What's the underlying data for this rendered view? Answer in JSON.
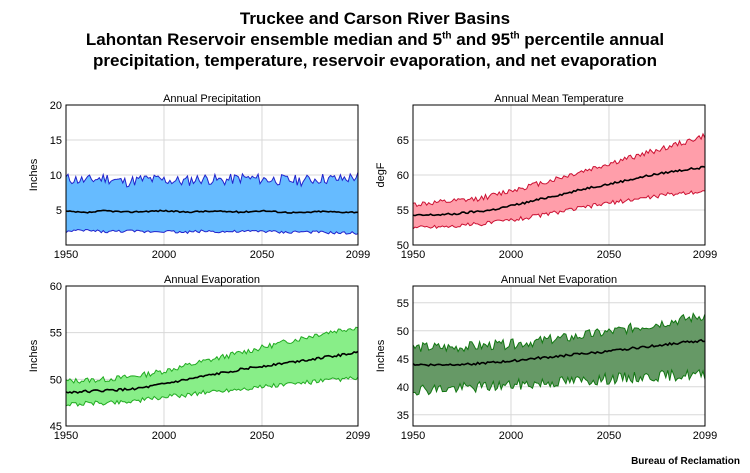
{
  "title": {
    "line1": "Truckee and Carson River Basins",
    "line2_pre": "Lahontan Reservoir ensemble median and 5",
    "line2_sup1": "th",
    "line2_mid": " and 95",
    "line2_sup2": "th",
    "line2_post": " percentile annual",
    "line3": "precipitation, temperature, reservoir evaporation, and net evaporation"
  },
  "credit": "Bureau of Reclamation",
  "chart_data": [
    {
      "type": "area",
      "title": "Annual Precipitation",
      "xlabel": "",
      "ylabel": "Inches",
      "xlim": [
        1950,
        2099
      ],
      "ylim": [
        0,
        20
      ],
      "xticks": [
        1950,
        2000,
        2050,
        2099
      ],
      "yticks": [
        5,
        10,
        15,
        20
      ],
      "grid": true,
      "fill_color": "#66bbff",
      "edge_color": "#2222cc",
      "median_color": "#000000",
      "x": [
        1950,
        1960,
        1970,
        1980,
        1990,
        2000,
        2010,
        2020,
        2030,
        2040,
        2050,
        2060,
        2070,
        2080,
        2090,
        2099
      ],
      "series": [
        {
          "name": "95th percentile",
          "values": [
            9.5,
            9.2,
            9.6,
            9.0,
            9.4,
            9.3,
            9.1,
            9.5,
            9.2,
            9.6,
            9.4,
            9.3,
            9.2,
            9.5,
            9.4,
            9.8
          ]
        },
        {
          "name": "Median",
          "values": [
            4.8,
            4.6,
            4.9,
            4.7,
            4.8,
            4.9,
            4.7,
            4.8,
            4.8,
            4.7,
            4.9,
            4.7,
            4.6,
            4.8,
            4.7,
            4.7
          ]
        },
        {
          "name": "5th percentile",
          "values": [
            1.9,
            2.1,
            1.9,
            2.0,
            1.9,
            2.0,
            1.8,
            2.0,
            1.9,
            1.9,
            2.0,
            1.8,
            1.9,
            1.8,
            1.7,
            1.7
          ]
        }
      ]
    },
    {
      "type": "area",
      "title": "Annual Mean Temperature",
      "xlabel": "",
      "ylabel": "degF",
      "xlim": [
        1950,
        2099
      ],
      "ylim": [
        50,
        70
      ],
      "xticks": [
        1950,
        2000,
        2050,
        2099
      ],
      "yticks": [
        50,
        55,
        60,
        65
      ],
      "grid": true,
      "fill_color": "#ff9eaa",
      "edge_color": "#cc1133",
      "median_color": "#000000",
      "x": [
        1950,
        1960,
        1970,
        1980,
        1990,
        2000,
        2010,
        2020,
        2030,
        2040,
        2050,
        2060,
        2070,
        2080,
        2090,
        2099
      ],
      "series": [
        {
          "name": "95th percentile",
          "values": [
            55.8,
            56.0,
            56.2,
            56.5,
            57.0,
            57.8,
            58.5,
            59.2,
            60.0,
            60.8,
            61.6,
            62.4,
            63.2,
            64.0,
            64.8,
            65.6
          ]
        },
        {
          "name": "Median",
          "values": [
            54.2,
            54.3,
            54.4,
            54.7,
            55.0,
            55.6,
            56.2,
            56.9,
            57.5,
            58.2,
            58.7,
            59.3,
            59.9,
            60.4,
            60.8,
            61.1
          ]
        },
        {
          "name": "5th percentile",
          "values": [
            52.5,
            52.6,
            52.7,
            52.9,
            53.2,
            53.6,
            54.0,
            54.5,
            55.0,
            55.5,
            56.0,
            56.4,
            56.8,
            57.2,
            57.5,
            57.7
          ]
        }
      ]
    },
    {
      "type": "area",
      "title": "Annual Evaporation",
      "xlabel": "",
      "ylabel": "Inches",
      "xlim": [
        1950,
        2099
      ],
      "ylim": [
        45,
        60
      ],
      "xticks": [
        1950,
        2000,
        2050,
        2099
      ],
      "yticks": [
        45,
        50,
        55,
        60
      ],
      "grid": true,
      "fill_color": "#88ee88",
      "edge_color": "#22aa22",
      "median_color": "#000000",
      "x": [
        1950,
        1960,
        1970,
        1980,
        1990,
        2000,
        2010,
        2020,
        2030,
        2040,
        2050,
        2060,
        2070,
        2080,
        2090,
        2099
      ],
      "series": [
        {
          "name": "95th percentile",
          "values": [
            49.8,
            49.9,
            50.0,
            50.2,
            50.5,
            50.9,
            51.4,
            51.9,
            52.4,
            52.9,
            53.4,
            53.9,
            54.4,
            54.9,
            55.3,
            55.6
          ]
        },
        {
          "name": "Median",
          "values": [
            48.6,
            48.7,
            48.8,
            48.9,
            49.1,
            49.5,
            49.9,
            50.3,
            50.7,
            51.1,
            51.4,
            51.7,
            52.0,
            52.3,
            52.6,
            52.9
          ]
        },
        {
          "name": "5th percentile",
          "values": [
            47.3,
            47.4,
            47.5,
            47.6,
            47.8,
            48.1,
            48.3,
            48.6,
            48.8,
            49.0,
            49.2,
            49.4,
            49.6,
            49.8,
            50.0,
            50.1
          ]
        }
      ]
    },
    {
      "type": "area",
      "title": "Annual Net Evaporation",
      "xlabel": "",
      "ylabel": "Inches",
      "xlim": [
        1950,
        2099
      ],
      "ylim": [
        33,
        58
      ],
      "xticks": [
        1950,
        2000,
        2050,
        2099
      ],
      "yticks": [
        35,
        40,
        45,
        50,
        55
      ],
      "grid": true,
      "fill_color": "#669966",
      "edge_color": "#117711",
      "median_color": "#000000",
      "x": [
        1950,
        1960,
        1970,
        1980,
        1990,
        2000,
        2010,
        2020,
        2030,
        2040,
        2050,
        2060,
        2070,
        2080,
        2090,
        2099
      ],
      "series": [
        {
          "name": "95th percentile",
          "values": [
            47.0,
            47.1,
            47.0,
            47.2,
            47.4,
            47.6,
            48.0,
            48.4,
            48.8,
            49.3,
            49.8,
            50.4,
            51.0,
            51.6,
            52.2,
            52.8
          ]
        },
        {
          "name": "Median",
          "values": [
            44.0,
            43.9,
            44.0,
            44.1,
            44.3,
            44.6,
            45.0,
            45.3,
            45.7,
            46.0,
            46.3,
            46.8,
            47.2,
            47.6,
            48.0,
            48.3
          ]
        },
        {
          "name": "5th percentile",
          "values": [
            39.5,
            39.6,
            39.7,
            39.9,
            40.1,
            40.3,
            40.5,
            40.8,
            41.0,
            41.2,
            41.4,
            41.6,
            41.8,
            42.0,
            42.1,
            42.2
          ]
        }
      ]
    }
  ]
}
